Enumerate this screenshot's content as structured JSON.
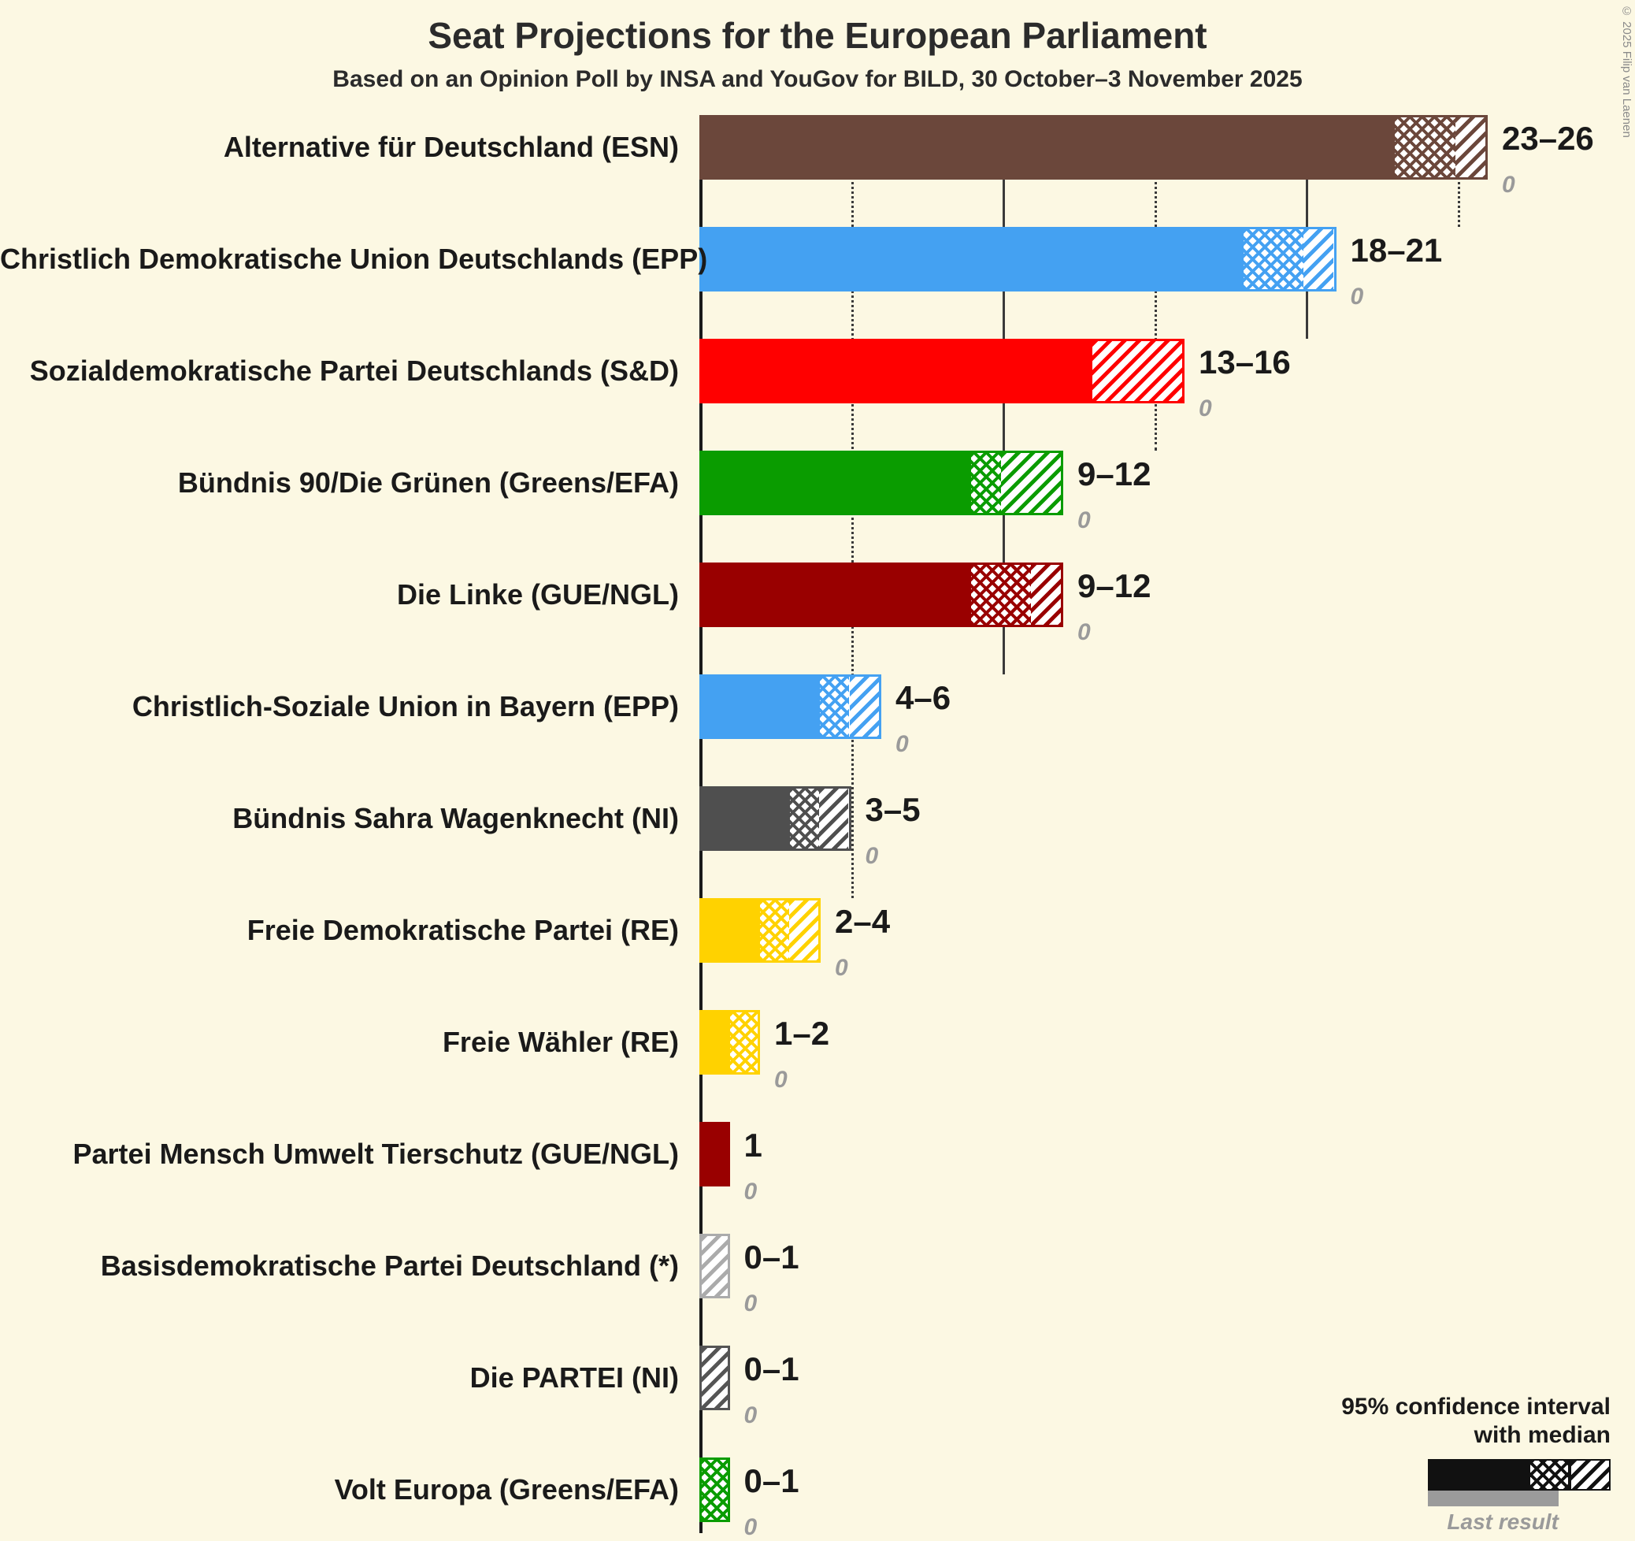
{
  "title": "Seat Projections for the European Parliament",
  "subtitle": "Based on an Opinion Poll by INSA and YouGov for BILD, 30 October–3 November 2025",
  "copyright": "© 2025 Filip van Laenen",
  "legend": {
    "line1": "95% confidence interval",
    "line2": "with median",
    "last_result": "Last result"
  },
  "chart_data": {
    "type": "bar",
    "orientation": "horizontal",
    "unit": "seats",
    "x_axis": {
      "min": 0,
      "max": 26.5
    },
    "ticks": [
      {
        "value": 5,
        "style": "dotted"
      },
      {
        "value": 10,
        "style": "solid"
      },
      {
        "value": 15,
        "style": "dotted"
      },
      {
        "value": 20,
        "style": "solid"
      },
      {
        "value": 25,
        "style": "dotted"
      }
    ],
    "parties": [
      {
        "name": "Alternative für Deutschland (ESN)",
        "color": "#6b473b",
        "low": 23,
        "median": 25,
        "high": 26,
        "seats_label": "23–26",
        "last_result": 0,
        "last_result_label": "0"
      },
      {
        "name": "Christlich Demokratische Union Deutschlands (EPP)",
        "color": "#44a1f2",
        "low": 18,
        "median": 20,
        "high": 21,
        "seats_label": "18–21",
        "last_result": 0,
        "last_result_label": "0"
      },
      {
        "name": "Sozialdemokratische Partei Deutschlands (S&D)",
        "color": "#ff0000",
        "low": 13,
        "median": 13,
        "high": 16,
        "seats_label": "13–16",
        "last_result": 0,
        "last_result_label": "0"
      },
      {
        "name": "Bündnis 90/Die Grünen (Greens/EFA)",
        "color": "#0a9c00",
        "low": 9,
        "median": 10,
        "high": 12,
        "seats_label": "9–12",
        "last_result": 0,
        "last_result_label": "0"
      },
      {
        "name": "Die Linke (GUE/NGL)",
        "color": "#990000",
        "low": 9,
        "median": 11,
        "high": 12,
        "seats_label": "9–12",
        "last_result": 0,
        "last_result_label": "0"
      },
      {
        "name": "Christlich-Soziale Union in Bayern (EPP)",
        "color": "#44a1f2",
        "low": 4,
        "median": 5,
        "high": 6,
        "seats_label": "4–6",
        "last_result": 0,
        "last_result_label": "0"
      },
      {
        "name": "Bündnis Sahra Wagenknecht (NI)",
        "color": "#4f4f4f",
        "low": 3,
        "median": 4,
        "high": 5,
        "seats_label": "3–5",
        "last_result": 0,
        "last_result_label": "0"
      },
      {
        "name": "Freie Demokratische Partei (RE)",
        "color": "#ffd200",
        "low": 2,
        "median": 3,
        "high": 4,
        "seats_label": "2–4",
        "last_result": 0,
        "last_result_label": "0"
      },
      {
        "name": "Freie Wähler (RE)",
        "color": "#ffd200",
        "low": 1,
        "median": 2,
        "high": 2,
        "seats_label": "1–2",
        "last_result": 0,
        "last_result_label": "0"
      },
      {
        "name": "Partei Mensch Umwelt Tierschutz (GUE/NGL)",
        "color": "#990000",
        "low": 1,
        "median": 1,
        "high": 1,
        "seats_label": "1",
        "last_result": 0,
        "last_result_label": "0"
      },
      {
        "name": "Basisdemokratische Partei Deutschland (*)",
        "color": "#ababab",
        "low": 0,
        "median": 0,
        "high": 1,
        "seats_label": "0–1",
        "last_result": 0,
        "last_result_label": "0"
      },
      {
        "name": "Die PARTEI (NI)",
        "color": "#555555",
        "low": 0,
        "median": 0,
        "high": 1,
        "seats_label": "0–1",
        "last_result": 0,
        "last_result_label": "0"
      },
      {
        "name": "Volt Europa (Greens/EFA)",
        "color": "#0a9c00",
        "low": 0,
        "median": 1,
        "high": 1,
        "seats_label": "0–1",
        "last_result": 0,
        "last_result_label": "0"
      }
    ]
  }
}
